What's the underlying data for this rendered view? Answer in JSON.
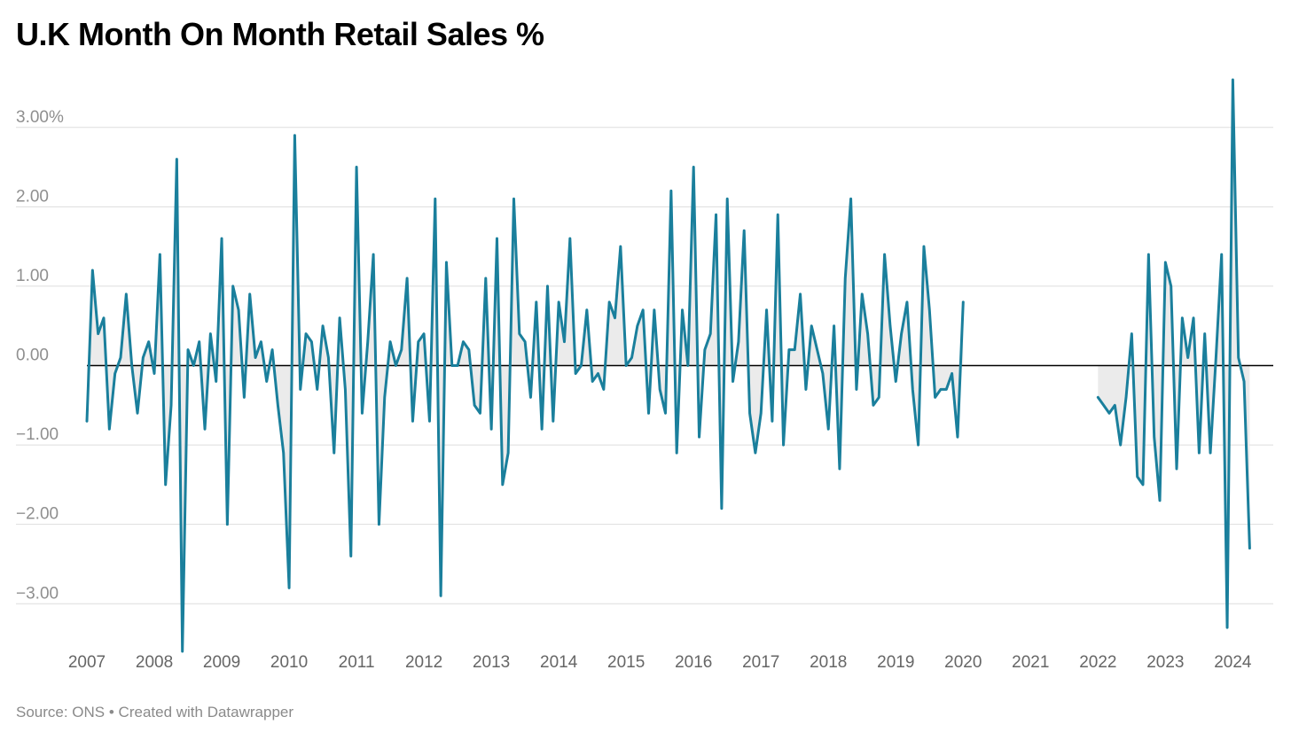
{
  "header": {
    "title": "U.K Month On Month Retail Sales %"
  },
  "footer": {
    "source": "Source: ONS • Created with Datawrapper"
  },
  "colors": {
    "line": "#1a7f9c",
    "area": "#e8e8e8",
    "grid": "#dddddd",
    "zero": "#000000"
  },
  "chart_data": {
    "type": "line",
    "title": "U.K Month On Month Retail Sales %",
    "xlabel": "",
    "ylabel": "",
    "ylim": [
      -3.6,
      3.6
    ],
    "xlim": [
      2007.0,
      2024.6
    ],
    "y_ticks": [
      {
        "value": 3,
        "label": "3.00%"
      },
      {
        "value": 2,
        "label": "2.00"
      },
      {
        "value": 1,
        "label": "1.00"
      },
      {
        "value": 0,
        "label": "0.00"
      },
      {
        "value": -1,
        "label": "−1.00"
      },
      {
        "value": -2,
        "label": "−2.00"
      },
      {
        "value": -3,
        "label": "−3.00"
      }
    ],
    "x_ticks": [
      {
        "value": 2007,
        "label": "2007"
      },
      {
        "value": 2008,
        "label": "2008"
      },
      {
        "value": 2009,
        "label": "2009"
      },
      {
        "value": 2010,
        "label": "2010"
      },
      {
        "value": 2011,
        "label": "2011"
      },
      {
        "value": 2012,
        "label": "2012"
      },
      {
        "value": 2013,
        "label": "2013"
      },
      {
        "value": 2014,
        "label": "2014"
      },
      {
        "value": 2015,
        "label": "2015"
      },
      {
        "value": 2016,
        "label": "2016"
      },
      {
        "value": 2017,
        "label": "2017"
      },
      {
        "value": 2018,
        "label": "2018"
      },
      {
        "value": 2019,
        "label": "2019"
      },
      {
        "value": 2020,
        "label": "2020"
      },
      {
        "value": 2021,
        "label": "2021"
      },
      {
        "value": 2022,
        "label": "2022"
      },
      {
        "value": 2023,
        "label": "2023"
      },
      {
        "value": 2024,
        "label": "2024"
      }
    ],
    "series": [
      {
        "name": "Month on month retail sales %",
        "segments": [
          {
            "start": "2007-01",
            "values": [
              -0.7,
              1.2,
              0.4,
              0.6,
              -0.8,
              -0.1,
              0.1,
              0.9,
              0.0,
              -0.6,
              0.1,
              0.3,
              -0.1,
              1.4,
              -1.5,
              -0.5,
              2.6,
              -3.6,
              0.2,
              0.0,
              0.3,
              -0.8,
              0.4,
              -0.2,
              1.6,
              -2.0,
              1.0,
              0.7,
              -0.4,
              0.9,
              0.1,
              0.3,
              -0.2,
              0.2,
              -0.5,
              -1.1,
              -2.8,
              2.9,
              -0.3,
              0.4,
              0.3,
              -0.3,
              0.5,
              0.1,
              -1.1,
              0.6,
              -0.3,
              -2.4,
              2.5,
              -0.6,
              0.3,
              1.4,
              -2.0,
              -0.4,
              0.3,
              0.0,
              0.2,
              1.1,
              -0.7,
              0.3,
              0.4,
              -0.7,
              2.1,
              -2.9,
              1.3,
              0.0,
              0.0,
              0.3,
              0.2,
              -0.5,
              -0.6,
              1.1,
              -0.8,
              1.6,
              -1.5,
              -1.1,
              2.1,
              0.4,
              0.3,
              -0.4,
              0.8,
              -0.8,
              1.0,
              -0.7,
              0.8,
              0.3,
              1.6,
              -0.1,
              0.0,
              0.7,
              -0.2,
              -0.1,
              -0.3,
              0.8,
              0.6,
              1.5,
              0.0,
              0.1,
              0.5,
              0.7,
              -0.6,
              0.7,
              -0.3,
              -0.6,
              2.2,
              -1.1,
              0.7,
              0.0,
              2.5,
              -0.9,
              0.2,
              0.4,
              1.9,
              -1.8,
              2.1,
              -0.2,
              0.3,
              1.7,
              -0.6,
              -1.1,
              -0.6,
              0.7,
              -0.7,
              1.9,
              -1.0,
              0.2,
              0.2,
              0.9,
              -0.3,
              0.5,
              0.2,
              -0.1,
              -0.8,
              0.5,
              -1.3,
              1.1,
              2.1,
              -0.3,
              0.9,
              0.4,
              -0.5,
              -0.4,
              1.4,
              0.5,
              -0.2,
              0.4,
              0.8,
              -0.3,
              -1.0,
              1.5,
              0.7,
              -0.4,
              -0.3,
              -0.3,
              -0.1,
              -0.9,
              0.8
            ]
          },
          {
            "start": "2022-01",
            "values": [
              -0.4,
              -0.5,
              -0.6,
              -0.5,
              -1.0,
              -0.4,
              0.4,
              -1.4,
              -1.5,
              1.4,
              -0.9,
              -1.7,
              1.3,
              1.0,
              -1.3,
              0.6,
              0.1,
              0.6,
              -1.1,
              0.4,
              -1.1,
              0.1,
              1.4,
              -3.3,
              3.6,
              0.1,
              -0.2,
              -2.3
            ]
          }
        ]
      }
    ]
  }
}
